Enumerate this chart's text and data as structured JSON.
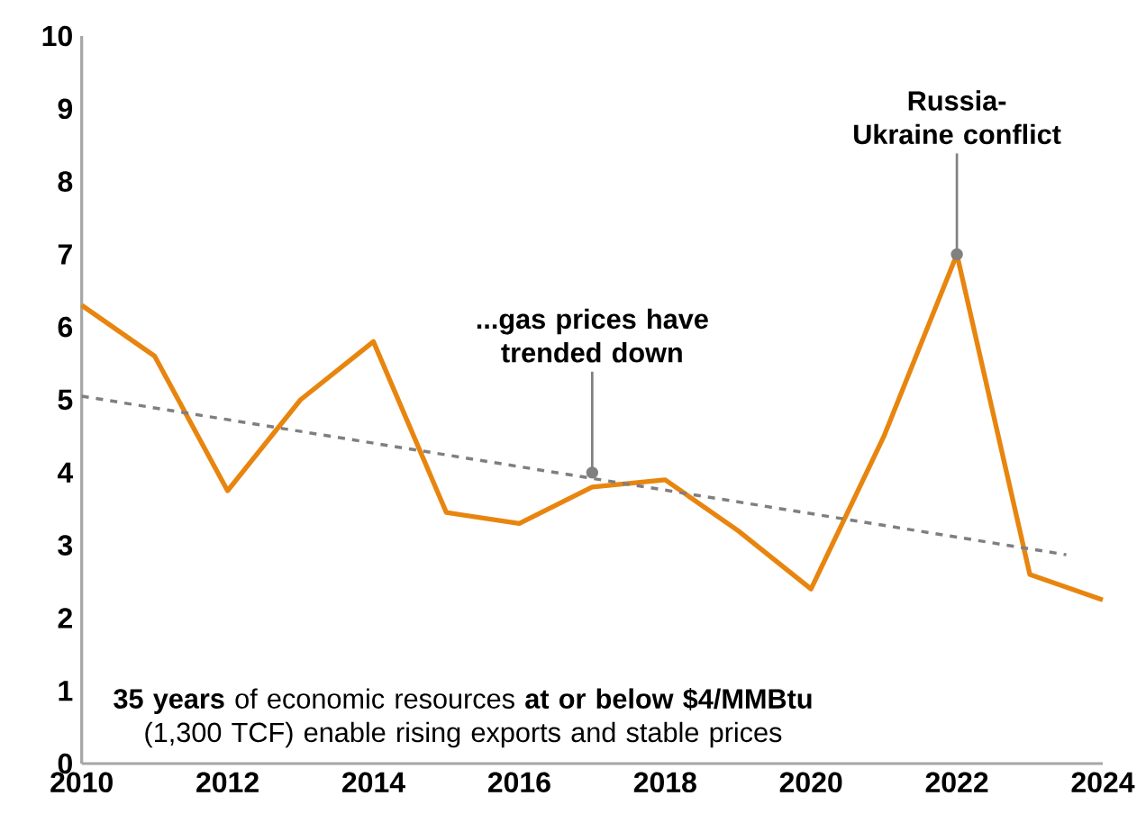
{
  "chart_data": {
    "type": "line",
    "x": [
      2010,
      2011,
      2012,
      2013,
      2014,
      2015,
      2016,
      2017,
      2018,
      2019,
      2020,
      2021,
      2022,
      2023,
      2024
    ],
    "series": [
      {
        "color": "#e8850f",
        "values": [
          6.3,
          5.6,
          3.75,
          5.0,
          5.8,
          3.45,
          3.3,
          3.8,
          3.9,
          3.2,
          2.4,
          4.5,
          7.0,
          2.6,
          2.25
        ]
      },
      {
        "type": "line",
        "x": [
          2010,
          2023.5
        ],
        "color": "#7f7f7f",
        "line_style": "dashed",
        "values": [
          5.05,
          2.87
        ]
      }
    ],
    "xlim": [
      2010,
      2024
    ],
    "xticks": [
      2010,
      2012,
      2014,
      2016,
      2018,
      2020,
      2022,
      2024
    ],
    "ylim": [
      0,
      10
    ],
    "yticks": [
      0,
      1,
      2,
      3,
      4,
      5,
      6,
      7,
      8,
      9,
      10
    ],
    "grid": false,
    "marker": "none",
    "line_style": "solid",
    "annotations": [
      {
        "text": "...gas prices have trended down",
        "x": 2017,
        "y": 4.0
      },
      {
        "text": "Russia- Ukraine conflict",
        "x": 2022,
        "y": 7.0
      },
      "**35 years** of economic resources **at or below $4/MMBtu** (1,300 TCF) enable rising exports and stable prices"
    ]
  }
}
